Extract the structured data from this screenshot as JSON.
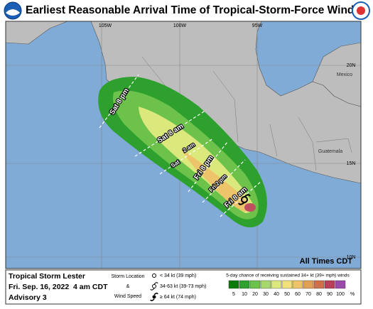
{
  "header": {
    "title": "Earliest Reasonable Arrival Time of Tropical-Storm-Force Winds"
  },
  "map": {
    "lon_labels": [
      "105W",
      "100W",
      "95W"
    ],
    "lat_labels": [
      "20N",
      "15N",
      "10N"
    ],
    "places": [
      "Mexico",
      "Guatemala"
    ],
    "time_labels": [
      "Sat 8 pm",
      "Sat 8 am",
      "Sat",
      "2 am",
      "Fri 8 pm",
      "Fri 2 pm",
      "Fri 8 am"
    ],
    "note": "All Times CDT"
  },
  "footer": {
    "storm": "Tropical Storm Lester",
    "date": "Fri. Sep. 16, 2022  4 am CDT",
    "advisory": "Advisory 3",
    "storm_location": "Storm Location",
    "amp": "&",
    "wind_speed": "Wind Speed",
    "symbols": [
      "< 34 kt (39 mph)",
      "34-63 kt (39-73 mph)",
      "≥ 64 kt (74 mph)"
    ],
    "scale_title": "5-day chance of receiving sustained 34+ kt (39+ mph) winds",
    "scale": [
      {
        "label": "5",
        "color": "#0a7a0a"
      },
      {
        "label": "10",
        "color": "#2ea02e"
      },
      {
        "label": "20",
        "color": "#6cc24a"
      },
      {
        "label": "30",
        "color": "#a6d86a"
      },
      {
        "label": "40",
        "color": "#dbe87c"
      },
      {
        "label": "50",
        "color": "#f2e07a"
      },
      {
        "label": "60",
        "color": "#eec46a"
      },
      {
        "label": "70",
        "color": "#e0a058"
      },
      {
        "label": "80",
        "color": "#d0704a"
      },
      {
        "label": "90",
        "color": "#b8405a"
      },
      {
        "label": "100",
        "color": "#9a4aa8"
      }
    ],
    "scale_unit": "%"
  }
}
